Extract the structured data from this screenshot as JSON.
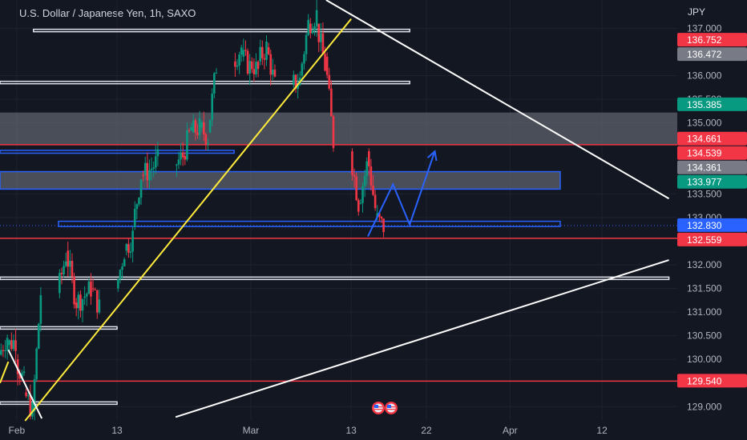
{
  "chart_data": {
    "type": "candlestick",
    "title": "U.S. Dollar / Japanese Yen, 1h, SAXO",
    "currency": "JPY",
    "ylim": [
      128.7,
      137.6
    ],
    "y_ticks": [
      "137.000",
      "136.000",
      "135.500",
      "135.000",
      "133.500",
      "133.000",
      "132.000",
      "131.500",
      "131.000",
      "130.500",
      "130.000",
      "129.000"
    ],
    "x_labels": [
      {
        "label": "Feb",
        "date": "2023-02-01"
      },
      {
        "label": "13",
        "date": "2023-02-13"
      },
      {
        "label": "Mar",
        "date": "2023-03-01"
      },
      {
        "label": "13",
        "date": "2023-03-13"
      },
      {
        "label": "22",
        "date": "2023-03-22"
      },
      {
        "label": "Apr",
        "date": "2023-04-01"
      },
      {
        "label": "12",
        "date": "2023-04-12"
      }
    ],
    "xlim": [
      "2023-01-30",
      "2023-04-21"
    ],
    "last_price": "132.830",
    "price_labels": [
      {
        "value": "136.752",
        "color": "#f23645"
      },
      {
        "value": "136.472",
        "color": "#787b86"
      },
      {
        "value": "135.385",
        "color": "#089981"
      },
      {
        "value": "134.661",
        "color": "#f23645"
      },
      {
        "value": "134.539",
        "color": "#f23645"
      },
      {
        "value": "134.361",
        "color": "#787b86"
      },
      {
        "value": "133.977",
        "color": "#089981"
      },
      {
        "value": "132.830",
        "color": "#2962ff"
      },
      {
        "value": "132.559",
        "color": "#f23645"
      },
      {
        "value": "129.540",
        "color": "#f23645"
      }
    ],
    "horizontal_lines": [
      {
        "price": 134.539,
        "color": "#f23645"
      },
      {
        "price": 132.559,
        "color": "#f23645"
      },
      {
        "price": 129.54,
        "color": "#f23645"
      }
    ],
    "zones": [
      {
        "from": "2023-02-03",
        "to": "2023-03-20",
        "top": 136.98,
        "bottom": 136.94,
        "style": "white-outline"
      },
      {
        "from": "2023-01-30",
        "to": "2023-03-20",
        "top": 135.88,
        "bottom": 135.83,
        "style": "white-outline"
      },
      {
        "from": "2023-01-30",
        "to": "2023-04-21",
        "top": 135.22,
        "bottom": 134.55,
        "style": "gray-fill"
      },
      {
        "from": "2023-01-30",
        "to": "2023-02-27",
        "top": 134.42,
        "bottom": 134.36,
        "style": "blue-outline"
      },
      {
        "from": "2023-01-30",
        "to": "2023-04-07",
        "top": 133.97,
        "bottom": 133.6,
        "style": "blue-gray-fill"
      },
      {
        "from": "2023-02-06",
        "to": "2023-04-07",
        "top": 132.92,
        "bottom": 132.81,
        "style": "blue-outline"
      },
      {
        "from": "2023-01-30",
        "to": "2023-04-20",
        "top": 131.74,
        "bottom": 131.69,
        "style": "white-outline"
      },
      {
        "from": "2023-01-30",
        "to": "2023-02-13",
        "top": 130.69,
        "bottom": 130.64,
        "style": "white-outline"
      },
      {
        "from": "2023-01-30",
        "to": "2023-02-13",
        "top": 129.1,
        "bottom": 129.05,
        "style": "white-outline"
      }
    ],
    "trendlines": [
      {
        "color": "#ffeb3b",
        "from": [
          "2023-02-02",
          128.7
        ],
        "to": [
          "2023-03-13",
          137.2
        ]
      },
      {
        "color": "#ffffff",
        "from": [
          "2023-03-10",
          137.6
        ],
        "to": [
          "2023-04-20",
          133.4
        ]
      },
      {
        "color": "#ffffff",
        "from": [
          "2023-02-20",
          128.78
        ],
        "to": [
          "2023-04-20",
          132.1
        ]
      },
      {
        "color": "#ffffff",
        "from": [
          "2023-01-31",
          130.2
        ],
        "to": [
          "2023-02-04",
          128.75
        ]
      },
      {
        "color": "#ffeb3b",
        "from": [
          "2023-01-30",
          129.5
        ],
        "to": [
          "2023-01-31",
          129.95
        ]
      }
    ],
    "projection_path": [
      [
        "2023-03-15",
        132.6
      ],
      [
        "2023-03-18",
        133.7
      ],
      [
        "2023-03-20",
        132.85
      ],
      [
        "2023-03-23",
        134.4
      ]
    ],
    "candles_approx": [
      {
        "date": "2023-01-30",
        "open": 130.1,
        "close": 130.5
      },
      {
        "date": "2023-01-31",
        "open": 130.3,
        "close": 130.4
      },
      {
        "date": "2023-02-01",
        "open": 130.0,
        "close": 129.5
      },
      {
        "date": "2023-02-02",
        "open": 129.3,
        "close": 128.9
      },
      {
        "date": "2023-02-03",
        "open": 128.9,
        "close": 131.4
      },
      {
        "date": "2023-02-06",
        "open": 131.4,
        "close": 132.2
      },
      {
        "date": "2023-02-07",
        "open": 132.3,
        "close": 131.4
      },
      {
        "date": "2023-02-08",
        "open": 131.2,
        "close": 131.3
      },
      {
        "date": "2023-02-09",
        "open": 131.3,
        "close": 131.5
      },
      {
        "date": "2023-02-10",
        "open": 131.5,
        "close": 131.1
      },
      {
        "date": "2023-02-13",
        "open": 131.5,
        "close": 132.3
      },
      {
        "date": "2023-02-14",
        "open": 132.3,
        "close": 132.6
      },
      {
        "date": "2023-02-15",
        "open": 132.8,
        "close": 133.9
      },
      {
        "date": "2023-02-16",
        "open": 133.9,
        "close": 134.0
      },
      {
        "date": "2023-02-17",
        "open": 134.0,
        "close": 134.2
      },
      {
        "date": "2023-02-20",
        "open": 134.1,
        "close": 134.3
      },
      {
        "date": "2023-02-21",
        "open": 134.3,
        "close": 134.9
      },
      {
        "date": "2023-02-22",
        "open": 134.8,
        "close": 134.9
      },
      {
        "date": "2023-02-23",
        "open": 134.9,
        "close": 134.7
      },
      {
        "date": "2023-02-24",
        "open": 134.8,
        "close": 136.2
      },
      {
        "date": "2023-02-27",
        "open": 136.3,
        "close": 136.6
      },
      {
        "date": "2023-02-28",
        "open": 136.4,
        "close": 136.2
      },
      {
        "date": "2023-03-01",
        "open": 136.3,
        "close": 136.1
      },
      {
        "date": "2023-03-02",
        "open": 136.3,
        "close": 136.6
      },
      {
        "date": "2023-03-03",
        "open": 136.6,
        "close": 135.8
      },
      {
        "date": "2023-03-06",
        "open": 135.8,
        "close": 135.9
      },
      {
        "date": "2023-03-07",
        "open": 136.0,
        "close": 137.1
      },
      {
        "date": "2023-03-08",
        "open": 137.1,
        "close": 137.3
      },
      {
        "date": "2023-03-09",
        "open": 137.1,
        "close": 136.2
      },
      {
        "date": "2023-03-10",
        "open": 136.4,
        "close": 134.6
      },
      {
        "date": "2023-03-13",
        "open": 134.4,
        "close": 133.3
      },
      {
        "date": "2023-03-14",
        "open": 133.3,
        "close": 134.1
      },
      {
        "date": "2023-03-15",
        "open": 134.4,
        "close": 133.2
      },
      {
        "date": "2023-03-16",
        "open": 133.0,
        "close": 132.8
      }
    ]
  }
}
